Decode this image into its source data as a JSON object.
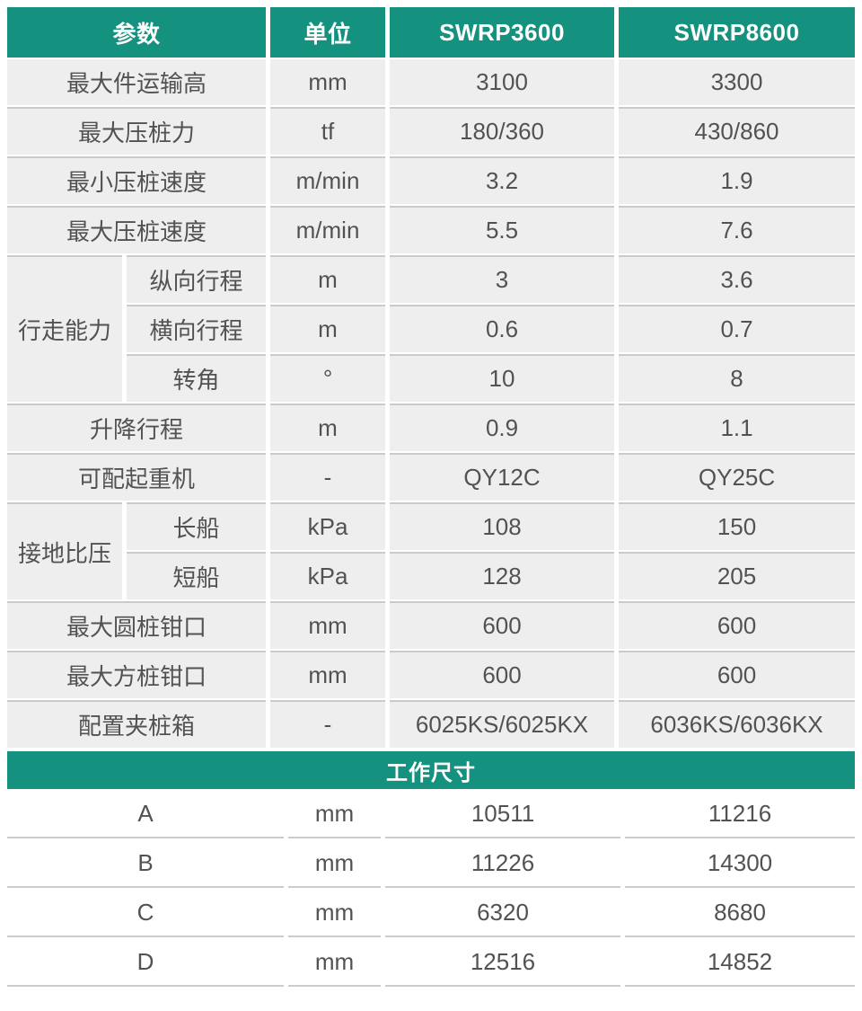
{
  "theme": {
    "accent_green": "#15917f",
    "cell_bg": "#efeeee",
    "row_line": "#c6cbcb",
    "text_color": "#525252",
    "header_text_color": "#ffffff"
  },
  "spec_table": {
    "headers": [
      "参数",
      "单位",
      "SWRP3600",
      "SWRP8600"
    ],
    "rows": [
      {
        "param": "最大件运输高",
        "unit": "mm",
        "v1": "3100",
        "v2": "3300"
      },
      {
        "param": "最大压桩力",
        "unit": "tf",
        "v1": "180/360",
        "v2": "430/860"
      },
      {
        "param": "最小压桩速度",
        "unit": "m/min",
        "v1": "3.2",
        "v2": "1.9"
      },
      {
        "param": "最大压桩速度",
        "unit": "m/min",
        "v1": "5.5",
        "v2": "7.6"
      },
      {
        "group": "行走能力",
        "sub": "纵向行程",
        "unit": "m",
        "v1": "3",
        "v2": "3.6"
      },
      {
        "sub": "横向行程",
        "unit": "m",
        "v1": "0.6",
        "v2": "0.7"
      },
      {
        "sub": "转角",
        "unit": "°",
        "v1": "10",
        "v2": "8"
      },
      {
        "param": "升降行程",
        "unit": "m",
        "v1": "0.9",
        "v2": "1.1"
      },
      {
        "param": "可配起重机",
        "unit": "-",
        "v1": "QY12C",
        "v2": "QY25C"
      },
      {
        "group": "接地比压",
        "sub": "长船",
        "unit": "kPa",
        "v1": "108",
        "v2": "150"
      },
      {
        "sub": "短船",
        "unit": "kPa",
        "v1": "128",
        "v2": "205"
      },
      {
        "param": "最大圆桩钳口",
        "unit": "mm",
        "v1": "600",
        "v2": "600"
      },
      {
        "param": "最大方桩钳口",
        "unit": "mm",
        "v1": "600",
        "v2": "600"
      },
      {
        "param": "配置夹桩箱",
        "unit": "-",
        "v1": "6025KS/6025KX",
        "v2": "6036KS/6036KX"
      }
    ]
  },
  "dimensions_section": {
    "title": "工作尺寸",
    "rows": [
      {
        "param": "A",
        "unit": "mm",
        "v1": "10511",
        "v2": "11216"
      },
      {
        "param": "B",
        "unit": "mm",
        "v1": "11226",
        "v2": "14300"
      },
      {
        "param": "C",
        "unit": "mm",
        "v1": "6320",
        "v2": "8680"
      },
      {
        "param": "D",
        "unit": "mm",
        "v1": "12516",
        "v2": "14852"
      }
    ]
  }
}
